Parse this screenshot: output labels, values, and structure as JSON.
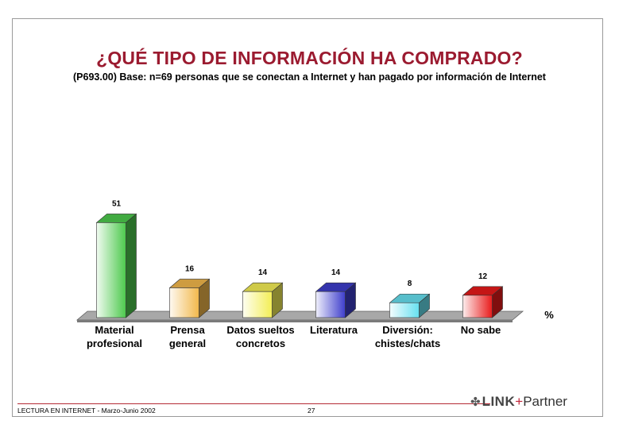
{
  "title": "¿QUÉ TIPO DE INFORMACIÓN HA COMPRADO?",
  "subtitle": "(P693.00) Base: n=69 personas que se conectan a Internet y han pagado por información de Internet",
  "footer": {
    "left": "LECTURA EN INTERNET - Marzo-Junio 2002",
    "page": "27"
  },
  "logo": {
    "link": "LINK",
    "plus": "+",
    "partner": "Partner"
  },
  "chart_data": {
    "type": "bar",
    "categories": [
      [
        "Material",
        "profesional"
      ],
      [
        "Prensa",
        "general"
      ],
      [
        "Datos sueltos",
        "concretos"
      ],
      [
        "Literatura"
      ],
      [
        "Diversión:",
        "chistes/chats"
      ],
      [
        "No sabe"
      ]
    ],
    "values": [
      51,
      16,
      14,
      14,
      8,
      12
    ],
    "unit_label": "%",
    "colors": [
      "#4cc94c",
      "#f2b84b",
      "#f3ee55",
      "#3d3dcc",
      "#66e0ef",
      "#e81a1a"
    ],
    "ylim": [
      0,
      60
    ],
    "grid": false,
    "legend": "none"
  }
}
